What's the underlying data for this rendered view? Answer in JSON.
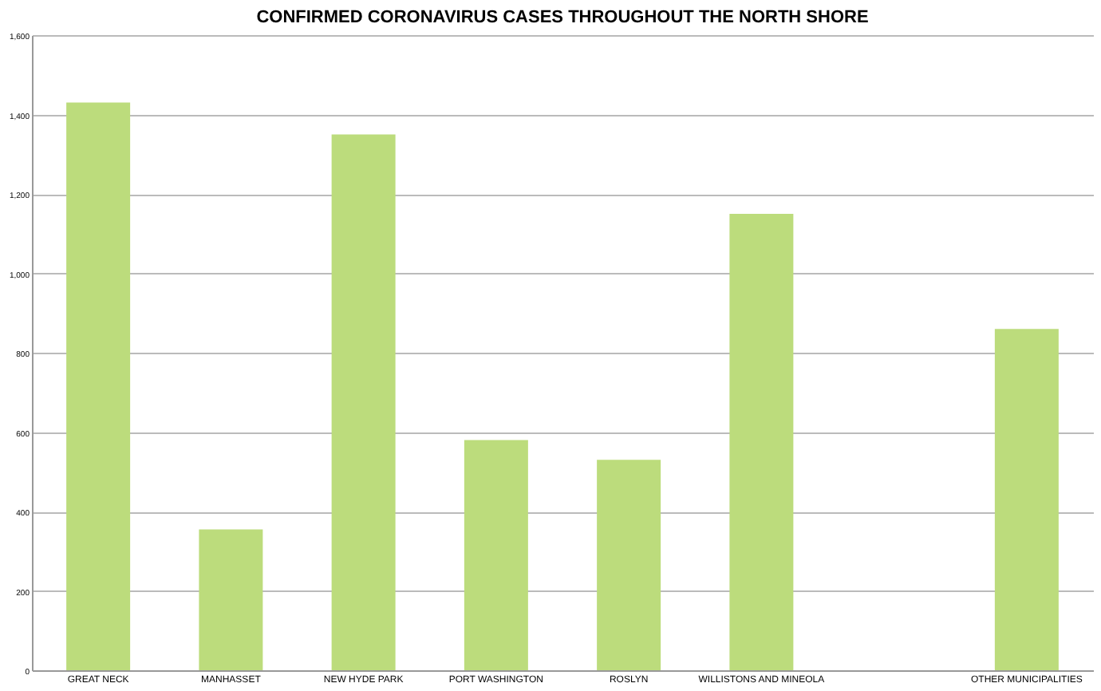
{
  "chart_data": {
    "type": "bar",
    "title": "CONFIRMED CORONAVIRUS CASES THROUGHOUT THE NORTH SHORE",
    "categories": [
      "GREAT NECK",
      "MANHASSET",
      "NEW HYDE PARK",
      "PORT WASHINGTON",
      "ROSLYN",
      "WILLISTONS AND MINEOLA",
      null,
      "OTHER MUNICIPALITIES"
    ],
    "values": [
      1430,
      355,
      1350,
      580,
      530,
      1150,
      null,
      860
    ],
    "color": "#bcdc7c",
    "ylim": [
      0,
      1600
    ],
    "yticks": [
      0,
      200,
      400,
      600,
      800,
      {
        "value": 1000,
        "label": "1,000"
      },
      {
        "value": 1200,
        "label": "1,200"
      },
      {
        "value": 1400,
        "label": "1,400"
      },
      {
        "value": 1600,
        "label": "1,600"
      }
    ],
    "grid": "y"
  }
}
